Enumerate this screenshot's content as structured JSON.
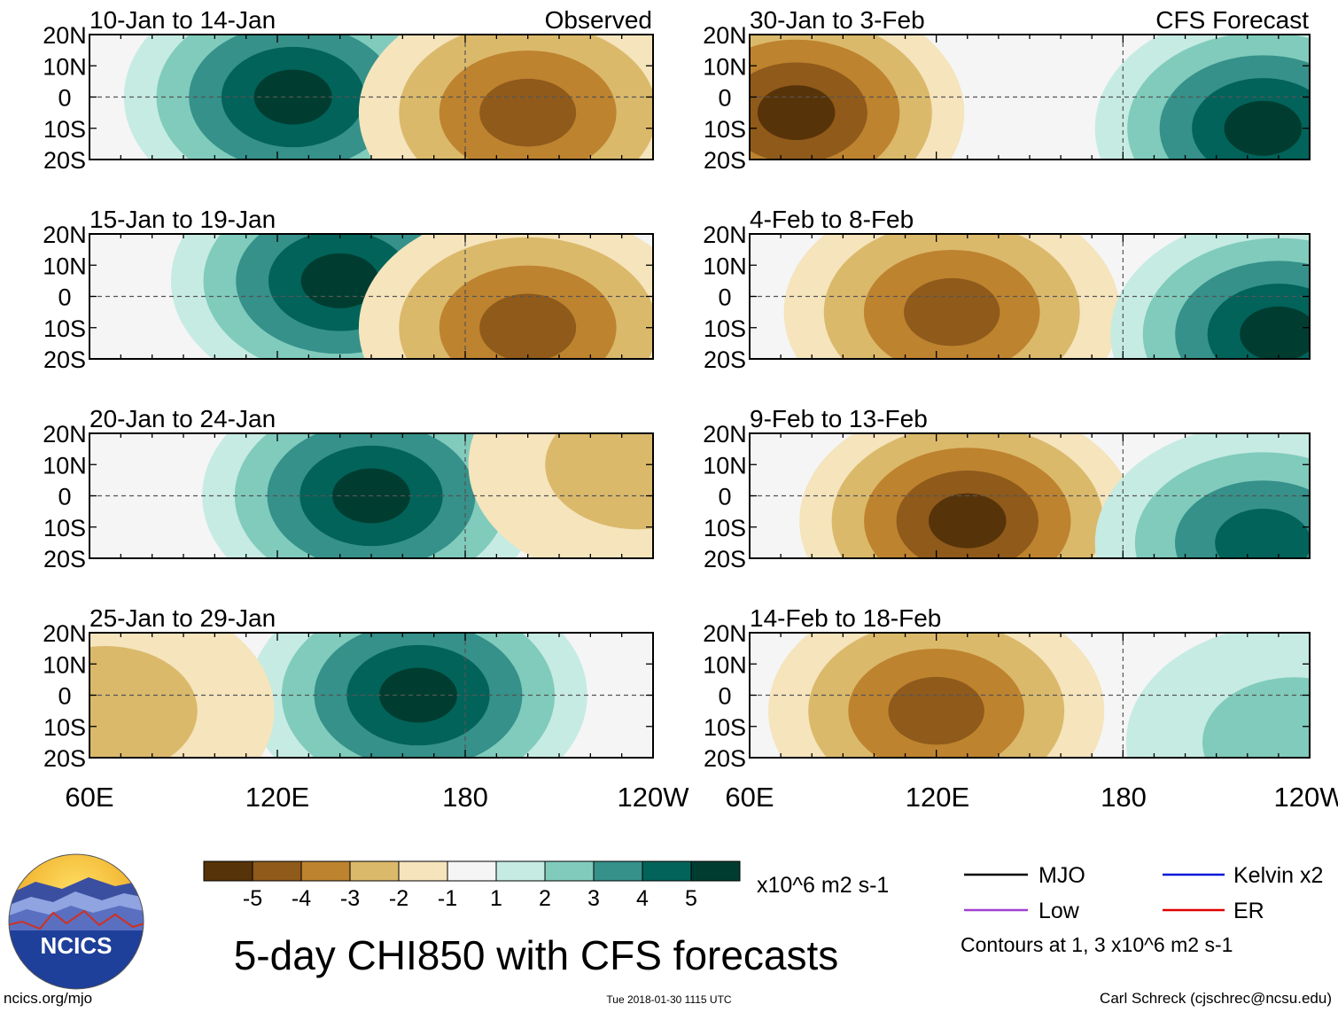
{
  "chart_data": {
    "type": "map-panels",
    "title": "5-day CHI850 with CFS forecasts",
    "variable": "CHI850",
    "units": "x10^6 m2 s-1",
    "lat_ticks": [
      "20N",
      "10N",
      "0",
      "10S",
      "20S"
    ],
    "lon_ticks": [
      "60E",
      "120E",
      "180",
      "120W"
    ],
    "lat_range": [
      -20,
      20
    ],
    "lon_range": [
      60,
      240
    ],
    "panels": [
      {
        "period": "10-Jan to 14-Jan",
        "label": "Observed",
        "column": "observed",
        "row": 0,
        "anomaly_centers": [
          {
            "lon": 125,
            "lat": 0,
            "value": 5
          },
          {
            "lon": 200,
            "lat": -5,
            "value": -4
          }
        ]
      },
      {
        "period": "15-Jan to 19-Jan",
        "label": "",
        "column": "observed",
        "row": 1,
        "anomaly_centers": [
          {
            "lon": 140,
            "lat": 5,
            "value": 5
          },
          {
            "lon": 200,
            "lat": -10,
            "value": -4
          }
        ]
      },
      {
        "period": "20-Jan to 24-Jan",
        "label": "",
        "column": "observed",
        "row": 2,
        "anomaly_centers": [
          {
            "lon": 150,
            "lat": 0,
            "value": 5
          },
          {
            "lon": 235,
            "lat": 10,
            "value": -2
          }
        ]
      },
      {
        "period": "25-Jan to 29-Jan",
        "label": "",
        "column": "observed",
        "row": 3,
        "anomaly_centers": [
          {
            "lon": 165,
            "lat": 0,
            "value": 5
          },
          {
            "lon": 65,
            "lat": -5,
            "value": -2
          }
        ]
      },
      {
        "period": "30-Jan to 3-Feb",
        "label": "CFS Forecast",
        "column": "forecast",
        "row": 0,
        "anomaly_centers": [
          {
            "lon": 75,
            "lat": -5,
            "value": -5
          },
          {
            "lon": 225,
            "lat": -10,
            "value": 5
          }
        ]
      },
      {
        "period": "4-Feb to 8-Feb",
        "label": "",
        "column": "forecast",
        "row": 1,
        "anomaly_centers": [
          {
            "lon": 125,
            "lat": -5,
            "value": -4
          },
          {
            "lon": 230,
            "lat": -12,
            "value": 5
          }
        ]
      },
      {
        "period": "9-Feb to 13-Feb",
        "label": "",
        "column": "forecast",
        "row": 2,
        "anomaly_centers": [
          {
            "lon": 130,
            "lat": -8,
            "value": -5
          },
          {
            "lon": 225,
            "lat": -15,
            "value": 4
          }
        ]
      },
      {
        "period": "14-Feb to 18-Feb",
        "label": "",
        "column": "forecast",
        "row": 3,
        "anomaly_centers": [
          {
            "lon": 120,
            "lat": -5,
            "value": -4
          },
          {
            "lon": 235,
            "lat": -15,
            "value": 2
          }
        ]
      }
    ],
    "colorbar": {
      "labels": [
        "-5",
        "-4",
        "-3",
        "-2",
        "-1",
        "1",
        "2",
        "3",
        "4",
        "5"
      ],
      "colors": [
        "#573309",
        "#8f5a1a",
        "#be832f",
        "#dbb96b",
        "#f5e4bc",
        "#f5f5f5",
        "#c6ebe3",
        "#80cbbc",
        "#359189",
        "#02635a",
        "#003d30"
      ]
    },
    "legend": [
      {
        "name": "MJO",
        "color": "#000000"
      },
      {
        "name": "Kelvin x2",
        "color": "#0019d6"
      },
      {
        "name": "Low",
        "color": "#a040d0"
      },
      {
        "name": "ER",
        "color": "#e00000"
      }
    ],
    "contour_note": "Contours at 1, 3 x10^6 m2 s-1"
  },
  "footer": {
    "logo_text": "NCICS",
    "website": "ncics.org/mjo",
    "timestamp": "Tue 2018-01-30 1115 UTC",
    "author": "Carl Schreck (cjschrec@ncsu.edu)"
  }
}
